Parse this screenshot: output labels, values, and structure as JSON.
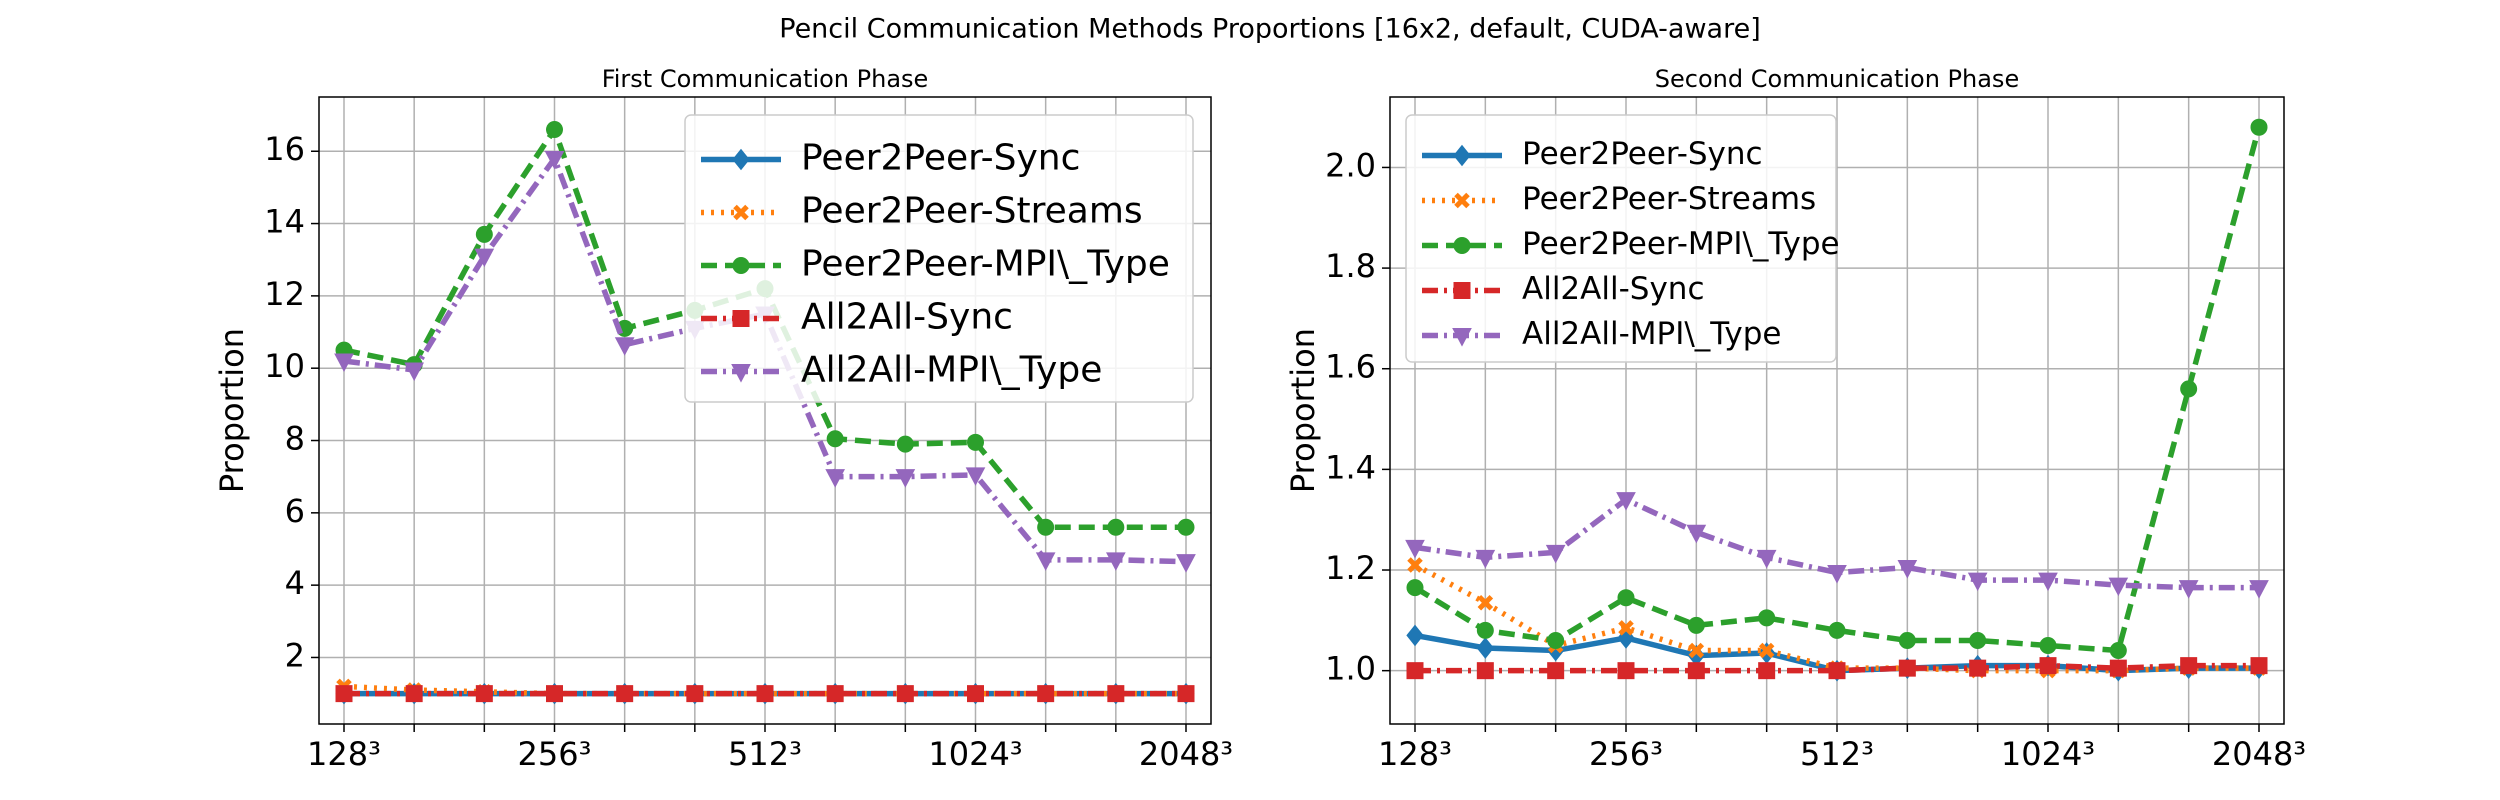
{
  "title": "Pencil Communication Methods Proportions [16x2, default, CUDA-aware]",
  "chart_data": [
    {
      "type": "line",
      "title": "First Communication Phase",
      "y_label": "Proportion",
      "legend": "upper right",
      "grid": true,
      "categories": [
        "128³",
        null,
        null,
        "256³",
        null,
        null,
        "512³",
        null,
        null,
        "1024³",
        null,
        null,
        "2048³"
      ],
      "ylim": [
        0.16,
        17.5
      ],
      "yticks": [
        2,
        4,
        6,
        8,
        10,
        12,
        14,
        16
      ],
      "series": [
        {
          "name": "Peer2Peer-Sync",
          "color": "#1f77b4",
          "values": [
            1.0,
            1.0,
            1.0,
            1.0,
            1.0,
            1.0,
            1.0,
            1.0,
            1.0,
            1.0,
            1.0,
            1.0,
            1.0
          ]
        },
        {
          "name": "Peer2Peer-Streams",
          "color": "#ff7f0e",
          "values": [
            1.2,
            1.1,
            1.05,
            1.0,
            1.0,
            1.0,
            1.0,
            1.0,
            1.0,
            1.0,
            1.0,
            1.0,
            1.0
          ]
        },
        {
          "name": "Peer2Peer-MPI\\_Type",
          "color": "#2ca02c",
          "values": [
            10.5,
            10.1,
            13.7,
            16.6,
            11.1,
            11.6,
            12.2,
            8.05,
            7.9,
            7.95,
            5.6,
            5.6,
            5.6
          ]
        },
        {
          "name": "All2All-Sync",
          "color": "#d62728",
          "values": [
            1.0,
            1.0,
            1.0,
            1.0,
            1.0,
            1.0,
            1.0,
            1.0,
            1.0,
            1.0,
            1.0,
            1.0,
            1.0
          ]
        },
        {
          "name": "All2All-MPI\\_Type",
          "color": "#9467bd",
          "values": [
            10.2,
            9.95,
            13.1,
            15.8,
            10.65,
            11.1,
            11.5,
            7.0,
            7.0,
            7.05,
            4.7,
            4.7,
            4.65
          ]
        }
      ]
    },
    {
      "type": "line",
      "title": "Second Communication Phase",
      "y_label": "Proportion",
      "legend": "upper left",
      "grid": true,
      "categories": [
        "128³",
        null,
        null,
        "256³",
        null,
        null,
        "512³",
        null,
        null,
        "1024³",
        null,
        null,
        "2048³"
      ],
      "ylim": [
        0.894,
        2.14
      ],
      "yticks": [
        {
          "value": 1.0,
          "label": "1.0"
        },
        {
          "value": 1.2,
          "label": "1.2"
        },
        {
          "value": 1.4,
          "label": "1.4"
        },
        {
          "value": 1.6,
          "label": "1.6"
        },
        {
          "value": 1.8,
          "label": "1.8"
        },
        {
          "value": 2.0,
          "label": "2.0"
        }
      ],
      "series": [
        {
          "name": "Peer2Peer-Sync",
          "color": "#1f77b4",
          "values": [
            1.07,
            1.045,
            1.04,
            1.065,
            1.03,
            1.035,
            1.0,
            1.005,
            1.01,
            1.01,
            1.0,
            1.005,
            1.005
          ]
        },
        {
          "name": "Peer2Peer-Streams",
          "color": "#ff7f0e",
          "values": [
            1.21,
            1.135,
            1.05,
            1.085,
            1.04,
            1.04,
            1.005,
            1.005,
            1.0,
            1.0,
            1.0,
            1.005,
            1.005
          ]
        },
        {
          "name": "Peer2Peer-MPI\\_Type",
          "color": "#2ca02c",
          "values": [
            1.165,
            1.08,
            1.06,
            1.145,
            1.09,
            1.105,
            1.08,
            1.06,
            1.06,
            1.05,
            1.04,
            1.56,
            2.08
          ]
        },
        {
          "name": "All2All-Sync",
          "color": "#d62728",
          "values": [
            1.0,
            1.0,
            1.0,
            1.0,
            1.0,
            1.0,
            1.0,
            1.005,
            1.005,
            1.01,
            1.005,
            1.01,
            1.01
          ]
        },
        {
          "name": "All2All-MPI\\_Type",
          "color": "#9467bd",
          "values": [
            1.245,
            1.225,
            1.235,
            1.34,
            1.275,
            1.225,
            1.195,
            1.205,
            1.18,
            1.18,
            1.17,
            1.165,
            1.165
          ]
        }
      ]
    }
  ]
}
